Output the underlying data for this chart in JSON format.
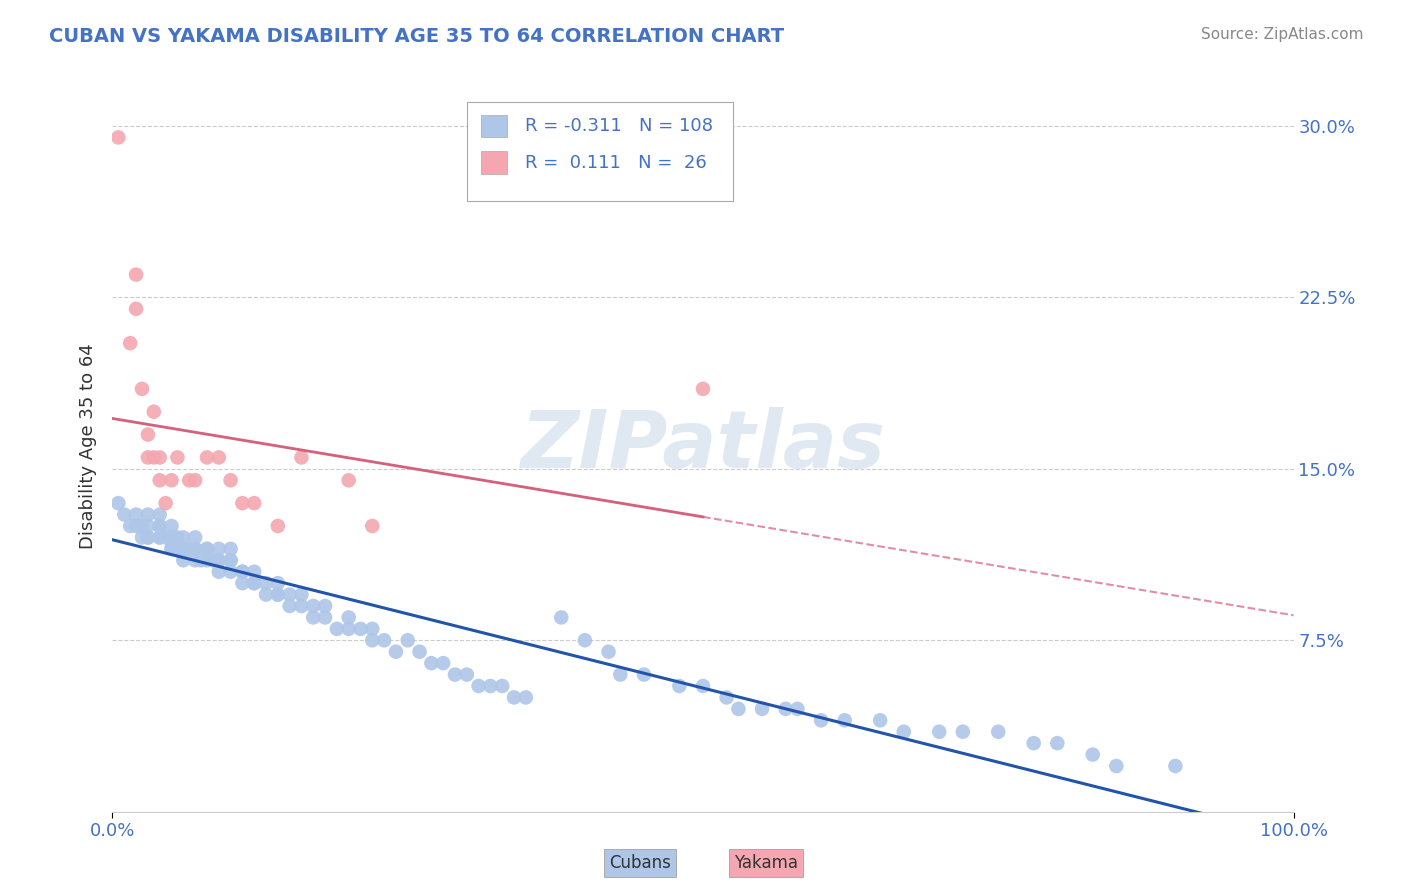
{
  "title": "CUBAN VS YAKAMA DISABILITY AGE 35 TO 64 CORRELATION CHART",
  "source": "Source: ZipAtlas.com",
  "ylabel": "Disability Age 35 to 64",
  "xlim": [
    0.0,
    1.0
  ],
  "ylim": [
    0.0,
    0.32
  ],
  "yticks": [
    0.075,
    0.15,
    0.225,
    0.3
  ],
  "ytick_labels": [
    "7.5%",
    "15.0%",
    "22.5%",
    "30.0%"
  ],
  "xtick_labels": [
    "0.0%",
    "100.0%"
  ],
  "cubans_R": -0.311,
  "cubans_N": 108,
  "yakama_R": 0.111,
  "yakama_N": 26,
  "cubans_color": "#aec6e8",
  "yakama_color": "#f4a7b0",
  "cubans_line_color": "#2255aa",
  "yakama_line_color": "#d4607a",
  "background_color": "#ffffff",
  "grid_color": "#cccccc",
  "title_color": "#4472c4",
  "legend_text_color": "#4472c4",
  "watermark": "ZIPatlas",
  "cubans_x": [
    0.005,
    0.01,
    0.015,
    0.02,
    0.02,
    0.025,
    0.025,
    0.03,
    0.03,
    0.03,
    0.03,
    0.04,
    0.04,
    0.04,
    0.04,
    0.04,
    0.045,
    0.05,
    0.05,
    0.05,
    0.05,
    0.05,
    0.055,
    0.055,
    0.06,
    0.06,
    0.06,
    0.06,
    0.065,
    0.07,
    0.07,
    0.07,
    0.07,
    0.075,
    0.08,
    0.08,
    0.08,
    0.085,
    0.09,
    0.09,
    0.09,
    0.09,
    0.1,
    0.1,
    0.1,
    0.1,
    0.11,
    0.11,
    0.11,
    0.12,
    0.12,
    0.12,
    0.13,
    0.13,
    0.14,
    0.14,
    0.14,
    0.15,
    0.15,
    0.16,
    0.16,
    0.17,
    0.17,
    0.18,
    0.18,
    0.19,
    0.2,
    0.2,
    0.21,
    0.22,
    0.22,
    0.23,
    0.24,
    0.25,
    0.26,
    0.27,
    0.28,
    0.29,
    0.3,
    0.31,
    0.32,
    0.33,
    0.34,
    0.35,
    0.38,
    0.4,
    0.42,
    0.43,
    0.45,
    0.48,
    0.5,
    0.52,
    0.53,
    0.55,
    0.57,
    0.58,
    0.6,
    0.62,
    0.65,
    0.67,
    0.7,
    0.72,
    0.75,
    0.78,
    0.8,
    0.83,
    0.85,
    0.9
  ],
  "cubans_y": [
    0.135,
    0.13,
    0.125,
    0.13,
    0.125,
    0.12,
    0.125,
    0.13,
    0.12,
    0.125,
    0.12,
    0.125,
    0.12,
    0.13,
    0.125,
    0.12,
    0.12,
    0.115,
    0.12,
    0.125,
    0.115,
    0.12,
    0.115,
    0.12,
    0.115,
    0.12,
    0.115,
    0.11,
    0.115,
    0.115,
    0.11,
    0.12,
    0.115,
    0.11,
    0.11,
    0.115,
    0.115,
    0.11,
    0.115,
    0.11,
    0.105,
    0.11,
    0.11,
    0.105,
    0.115,
    0.11,
    0.105,
    0.1,
    0.105,
    0.105,
    0.1,
    0.1,
    0.095,
    0.1,
    0.095,
    0.1,
    0.095,
    0.09,
    0.095,
    0.09,
    0.095,
    0.09,
    0.085,
    0.09,
    0.085,
    0.08,
    0.085,
    0.08,
    0.08,
    0.075,
    0.08,
    0.075,
    0.07,
    0.075,
    0.07,
    0.065,
    0.065,
    0.06,
    0.06,
    0.055,
    0.055,
    0.055,
    0.05,
    0.05,
    0.085,
    0.075,
    0.07,
    0.06,
    0.06,
    0.055,
    0.055,
    0.05,
    0.045,
    0.045,
    0.045,
    0.045,
    0.04,
    0.04,
    0.04,
    0.035,
    0.035,
    0.035,
    0.035,
    0.03,
    0.03,
    0.025,
    0.02,
    0.02
  ],
  "yakama_x": [
    0.005,
    0.015,
    0.02,
    0.02,
    0.025,
    0.03,
    0.03,
    0.035,
    0.035,
    0.04,
    0.04,
    0.045,
    0.05,
    0.055,
    0.065,
    0.07,
    0.08,
    0.09,
    0.1,
    0.11,
    0.12,
    0.14,
    0.16,
    0.2,
    0.22,
    0.5
  ],
  "yakama_y": [
    0.295,
    0.205,
    0.235,
    0.22,
    0.185,
    0.165,
    0.155,
    0.175,
    0.155,
    0.155,
    0.145,
    0.135,
    0.145,
    0.155,
    0.145,
    0.145,
    0.155,
    0.155,
    0.145,
    0.135,
    0.135,
    0.125,
    0.155,
    0.145,
    0.125,
    0.185
  ]
}
